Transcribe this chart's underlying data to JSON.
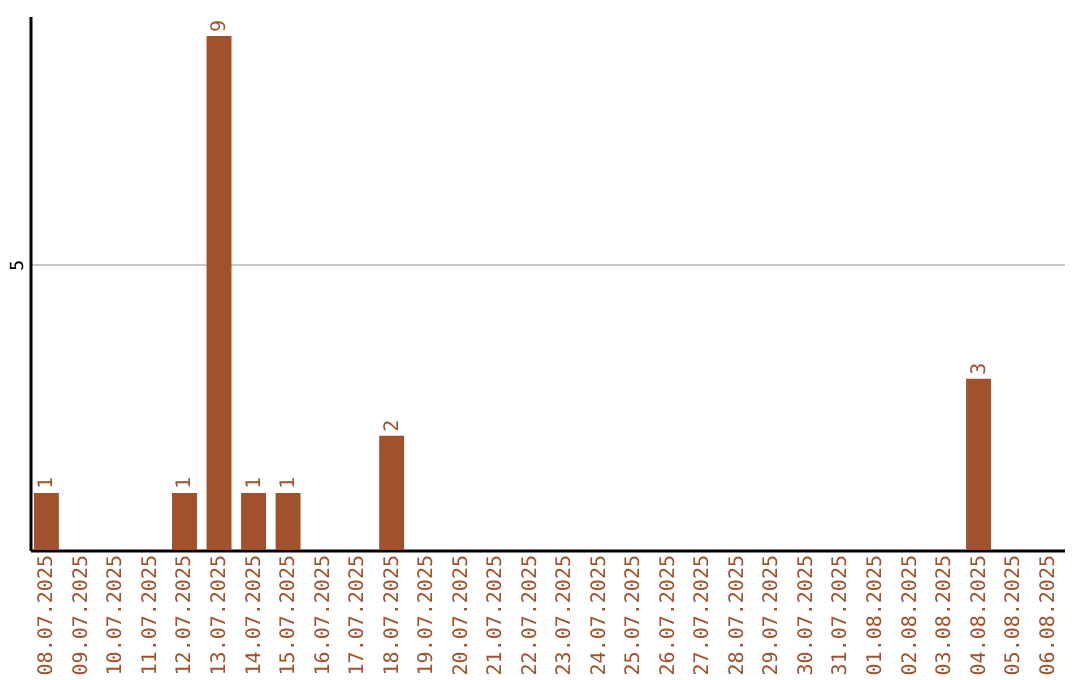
{
  "chart_data": {
    "type": "bar",
    "categories": [
      "08.07.2025",
      "09.07.2025",
      "10.07.2025",
      "11.07.2025",
      "12.07.2025",
      "13.07.2025",
      "14.07.2025",
      "15.07.2025",
      "16.07.2025",
      "17.07.2025",
      "18.07.2025",
      "19.07.2025",
      "20.07.2025",
      "21.07.2025",
      "22.07.2025",
      "23.07.2025",
      "24.07.2025",
      "25.07.2025",
      "26.07.2025",
      "27.07.2025",
      "28.07.2025",
      "29.07.2025",
      "30.07.2025",
      "31.07.2025",
      "01.08.2025",
      "02.08.2025",
      "03.08.2025",
      "04.08.2025",
      "05.08.2025",
      "06.08.2025"
    ],
    "values": [
      1,
      0,
      0,
      0,
      1,
      9,
      1,
      1,
      0,
      0,
      2,
      0,
      0,
      0,
      0,
      0,
      0,
      0,
      0,
      0,
      0,
      0,
      0,
      0,
      0,
      0,
      0,
      3,
      0,
      0
    ],
    "value_labels": [
      "1",
      null,
      null,
      null,
      "1",
      "9",
      "1",
      "1",
      null,
      null,
      "2",
      null,
      null,
      null,
      null,
      null,
      null,
      null,
      null,
      null,
      null,
      null,
      null,
      null,
      null,
      null,
      null,
      "3",
      null,
      null
    ],
    "color": "#a0522d",
    "ylim": [
      0,
      9.35
    ],
    "yticks": [
      5
    ],
    "grid": "y"
  }
}
